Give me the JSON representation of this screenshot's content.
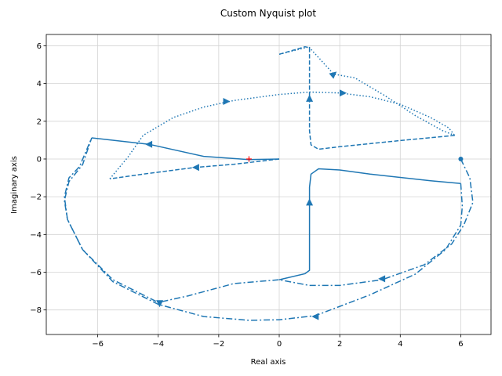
{
  "chart_data": {
    "type": "line",
    "title": "Custom Nyquist plot",
    "xlabel": "Real axis",
    "ylabel": "Imaginary axis",
    "xlim": [
      -7.7,
      7.0
    ],
    "ylim": [
      -9.3,
      6.6
    ],
    "xticks": [
      -6,
      -4,
      -2,
      0,
      2,
      4,
      6
    ],
    "yticks": [
      -8,
      -6,
      -4,
      -2,
      0,
      2,
      4,
      6
    ],
    "grid": true,
    "color": "#1f77b4",
    "critical_point": {
      "x": -1,
      "y": 0,
      "color": "#ff0000",
      "marker": "+"
    },
    "start_point": {
      "x": 6,
      "y": 0
    },
    "series": [
      {
        "style": "solid",
        "points": [
          [
            0,
            0
          ],
          [
            -1,
            -0.03
          ],
          [
            -2.5,
            0.14
          ],
          [
            -4.3,
            0.78
          ],
          [
            -6.2,
            1.12
          ]
        ]
      },
      {
        "style": "dashed",
        "points": [
          [
            0,
            0
          ],
          [
            -1.5,
            -0.28
          ],
          [
            -2.8,
            -0.45
          ],
          [
            -4.5,
            -0.8
          ],
          [
            -5.6,
            -1.05
          ]
        ]
      },
      {
        "style": "solid",
        "points": [
          [
            6,
            -1.3
          ],
          [
            5,
            -1.15
          ],
          [
            3,
            -0.8
          ],
          [
            2,
            -0.58
          ],
          [
            1.3,
            -0.52
          ],
          [
            1.05,
            -0.8
          ],
          [
            1,
            -1.5
          ],
          [
            1,
            -2.3
          ],
          [
            1,
            -4
          ],
          [
            1,
            -5.9
          ],
          [
            0.85,
            -6.08
          ],
          [
            0,
            -6.4
          ]
        ]
      },
      {
        "style": "dashed",
        "points": [
          [
            5.8,
            1.25
          ],
          [
            4,
            0.98
          ],
          [
            2,
            0.65
          ],
          [
            1.3,
            0.52
          ],
          [
            1.05,
            0.75
          ],
          [
            1,
            1.5
          ],
          [
            1,
            3.2
          ],
          [
            1,
            4.5
          ],
          [
            1,
            5.9
          ],
          [
            0.85,
            5.95
          ],
          [
            0,
            5.55
          ]
        ]
      },
      {
        "style": "dashdot",
        "points": [
          [
            6,
            0
          ],
          [
            6.3,
            -1
          ],
          [
            6.4,
            -2.3
          ],
          [
            6.1,
            -3.5
          ],
          [
            5.7,
            -4.5
          ],
          [
            4.8,
            -5.6
          ],
          [
            3.4,
            -6.4
          ],
          [
            2,
            -6.7
          ],
          [
            1,
            -6.7
          ],
          [
            0,
            -6.4
          ],
          [
            -1.5,
            -6.6
          ],
          [
            -3,
            -7.25
          ],
          [
            -4,
            -7.6
          ],
          [
            -5.5,
            -6.4
          ],
          [
            -6.5,
            -4.8
          ],
          [
            -7,
            -3.2
          ],
          [
            -7.1,
            -2
          ],
          [
            -6.95,
            -1
          ],
          [
            -6.6,
            -0.4
          ],
          [
            -6.2,
            1.12
          ]
        ]
      },
      {
        "style": "dashdot",
        "points": [
          [
            6,
            -1.3
          ],
          [
            6.05,
            -2.5
          ],
          [
            6,
            -3.5
          ],
          [
            5.5,
            -4.8
          ],
          [
            4.5,
            -6.1
          ],
          [
            3,
            -7.2
          ],
          [
            1.2,
            -8.3
          ],
          [
            0,
            -8.52
          ],
          [
            -1,
            -8.55
          ],
          [
            -2.5,
            -8.35
          ],
          [
            -4,
            -7.7
          ],
          [
            -5.5,
            -6.5
          ],
          [
            -6.5,
            -4.8
          ],
          [
            -7,
            -3.2
          ],
          [
            -7.1,
            -2.2
          ],
          [
            -6.95,
            -1.2
          ],
          [
            -6.5,
            -0.3
          ],
          [
            -6.2,
            1.12
          ]
        ]
      },
      {
        "style": "dotted",
        "points": [
          [
            -5.6,
            -1.05
          ],
          [
            -5,
            0.1
          ],
          [
            -4.5,
            1.25
          ],
          [
            -3.5,
            2.2
          ],
          [
            -2.5,
            2.75
          ],
          [
            -1.5,
            3.1
          ],
          [
            0,
            3.42
          ],
          [
            1,
            3.55
          ],
          [
            2,
            3.5
          ],
          [
            3,
            3.3
          ],
          [
            4,
            2.9
          ],
          [
            5,
            2.2
          ],
          [
            5.6,
            1.65
          ],
          [
            5.8,
            1.25
          ]
        ]
      },
      {
        "style": "dotted",
        "points": [
          [
            0,
            5.55
          ],
          [
            1,
            5.95
          ],
          [
            1,
            5.9
          ],
          [
            1.8,
            4.5
          ],
          [
            2.5,
            4.3
          ],
          [
            3.5,
            3.35
          ],
          [
            4.5,
            2.3
          ],
          [
            5.4,
            1.5
          ],
          [
            5.8,
            1.25
          ]
        ]
      }
    ],
    "arrows": [
      {
        "x": -4.3,
        "y": 0.78,
        "dir": "left"
      },
      {
        "x": -2.75,
        "y": -0.45,
        "dir": "left"
      },
      {
        "x": 1.0,
        "y": -2.3,
        "dir": "up"
      },
      {
        "x": 1.0,
        "y": 3.2,
        "dir": "up"
      },
      {
        "x": -1.75,
        "y": 3.05,
        "dir": "right"
      },
      {
        "x": 2.1,
        "y": 3.5,
        "dir": "right"
      },
      {
        "x": 1.8,
        "y": 4.5,
        "dir": "upright"
      },
      {
        "x": 3.4,
        "y": -6.35,
        "dir": "left"
      },
      {
        "x": 1.2,
        "y": -8.35,
        "dir": "left"
      },
      {
        "x": -3.95,
        "y": -7.65,
        "dir": "down"
      }
    ]
  }
}
